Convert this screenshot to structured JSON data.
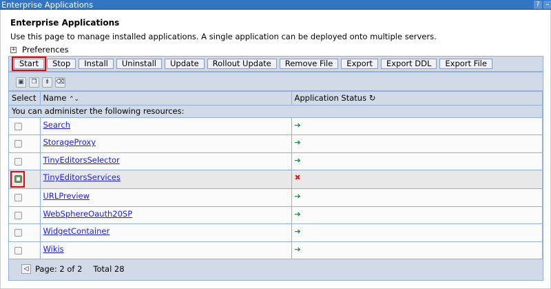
{
  "window": {
    "title": "Enterprise Applications",
    "help": "?",
    "minimize": "–"
  },
  "page": {
    "title": "Enterprise Applications",
    "description": "Use this page to manage installed applications. A single application can be deployed onto multiple servers.",
    "preferences": "Preferences"
  },
  "toolbar": [
    "Start",
    "Stop",
    "Install",
    "Uninstall",
    "Update",
    "Rollout Update",
    "Remove File",
    "Export",
    "Export DDL",
    "Export File"
  ],
  "icons": [
    "select-all-icon",
    "deselect-all-icon",
    "expand-filter-icon",
    "clear-filter-icon"
  ],
  "table": {
    "headers": {
      "select": "Select",
      "name": "Name",
      "status": "Application Status"
    },
    "info": "You can administer the following resources:",
    "rows": [
      {
        "name": "Search",
        "status": "started",
        "checked": false
      },
      {
        "name": "StorageProxy",
        "status": "started",
        "checked": false
      },
      {
        "name": "TinyEditorsSelector",
        "status": "started",
        "checked": false
      },
      {
        "name": "TinyEditorsServices",
        "status": "stopped",
        "checked": true
      },
      {
        "name": "URLPreview",
        "status": "started",
        "checked": false
      },
      {
        "name": "WebSphereOauth20SP",
        "status": "started",
        "checked": false
      },
      {
        "name": "WidgetContainer",
        "status": "started",
        "checked": false
      },
      {
        "name": "Wikis",
        "status": "started",
        "checked": false
      }
    ]
  },
  "footer": {
    "page": "Page: 2 of 2",
    "total": "Total 28"
  },
  "colors": {
    "titlebar": "#3276c3",
    "panel": "#d2dae8",
    "link": "#1a1aff",
    "started": "#1a8a4a",
    "stopped": "#d22222"
  }
}
